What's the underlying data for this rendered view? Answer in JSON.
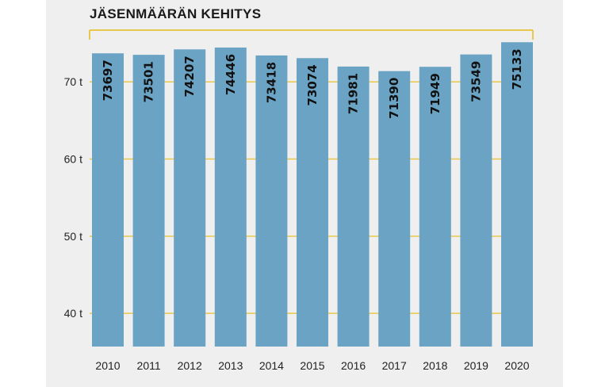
{
  "chart_data": {
    "type": "bar",
    "title": "JÄSENMÄÄRÄN KEHITYS",
    "categories": [
      "2010",
      "2011",
      "2012",
      "2013",
      "2014",
      "2015",
      "2016",
      "2017",
      "2018",
      "2019",
      "2020"
    ],
    "values": [
      73697,
      73501,
      74207,
      74446,
      73418,
      73074,
      71981,
      71390,
      71949,
      73549,
      75133
    ],
    "value_labels": [
      "73697",
      "73501",
      "74207",
      "74446",
      "73418",
      "73074",
      "71981",
      "71390",
      "71949",
      "73549",
      "75133"
    ],
    "yticks": [
      40000,
      50000,
      60000,
      70000
    ],
    "ytick_labels": [
      "40 t",
      "50 t",
      "60 t",
      "70 t"
    ],
    "ylim": [
      35700,
      76700
    ],
    "grid": true,
    "colors": {
      "bar": "#6aa3c4",
      "grid": "#e8c84a",
      "panel": "#efefef"
    }
  }
}
